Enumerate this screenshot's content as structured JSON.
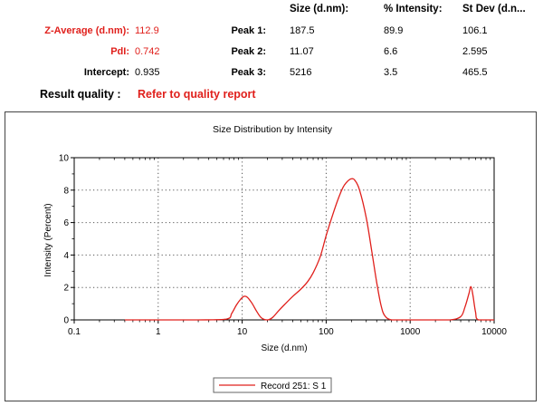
{
  "summary": {
    "z_average_label": "Z-Average (d.nm):",
    "z_average_value": "112.9",
    "pdi_label": "PdI:",
    "pdi_value": "0.742",
    "intercept_label": "Intercept:",
    "intercept_value": "0.935",
    "result_quality_label": "Result quality :",
    "result_quality_value": "Refer to quality report"
  },
  "peaks_table": {
    "columns": [
      "Size (d.nm):",
      "% Intensity:",
      "St Dev (d.n..."
    ],
    "rows": [
      {
        "label": "Peak 1:",
        "size": "187.5",
        "intensity": "89.9",
        "stdev": "106.1"
      },
      {
        "label": "Peak 2:",
        "size": "11.07",
        "intensity": "6.6",
        "stdev": "2.595"
      },
      {
        "label": "Peak 3:",
        "size": "5216",
        "intensity": "3.5",
        "stdev": "465.5"
      }
    ]
  },
  "colors": {
    "highlight": "#e0201c",
    "series": "#e0201c",
    "grid": "#555555"
  },
  "chart_data": {
    "type": "line",
    "title": "Size Distribution by Intensity",
    "xlabel": "Size (d.nm)",
    "ylabel": "Intensity (Percent)",
    "x_scale": "log",
    "xlim": [
      0.1,
      10000
    ],
    "ylim": [
      0,
      10
    ],
    "x_ticks": [
      "0.1",
      "1",
      "10",
      "100",
      "1000",
      "10000"
    ],
    "y_ticks": [
      "0",
      "2",
      "4",
      "6",
      "8",
      "10"
    ],
    "grid": true,
    "legend": "bottom-center",
    "series": [
      {
        "name": "Record 251: S 1",
        "x": [
          0.4,
          1,
          3,
          6.5,
          7.5,
          8.5,
          9.5,
          10.5,
          11.5,
          13,
          15,
          17,
          20,
          23,
          27,
          32,
          40,
          50,
          60,
          70,
          85,
          100,
          120,
          140,
          160,
          180,
          200,
          220,
          250,
          300,
          350,
          400,
          450,
          500,
          600,
          800,
          1000,
          2000,
          3000,
          4000,
          4500,
          5000,
          5300,
          5600,
          6000,
          6500,
          10000
        ],
        "y": [
          0,
          0,
          0,
          0.05,
          0.4,
          0.9,
          1.25,
          1.45,
          1.4,
          1.05,
          0.5,
          0.12,
          0,
          0.15,
          0.55,
          0.95,
          1.45,
          1.9,
          2.35,
          2.9,
          3.9,
          5.2,
          6.5,
          7.5,
          8.2,
          8.55,
          8.7,
          8.6,
          8.0,
          6.3,
          4.2,
          2.3,
          0.9,
          0.25,
          0,
          0,
          0,
          0,
          0,
          0.2,
          0.8,
          1.6,
          2.05,
          1.5,
          0.5,
          0,
          0
        ]
      }
    ]
  }
}
